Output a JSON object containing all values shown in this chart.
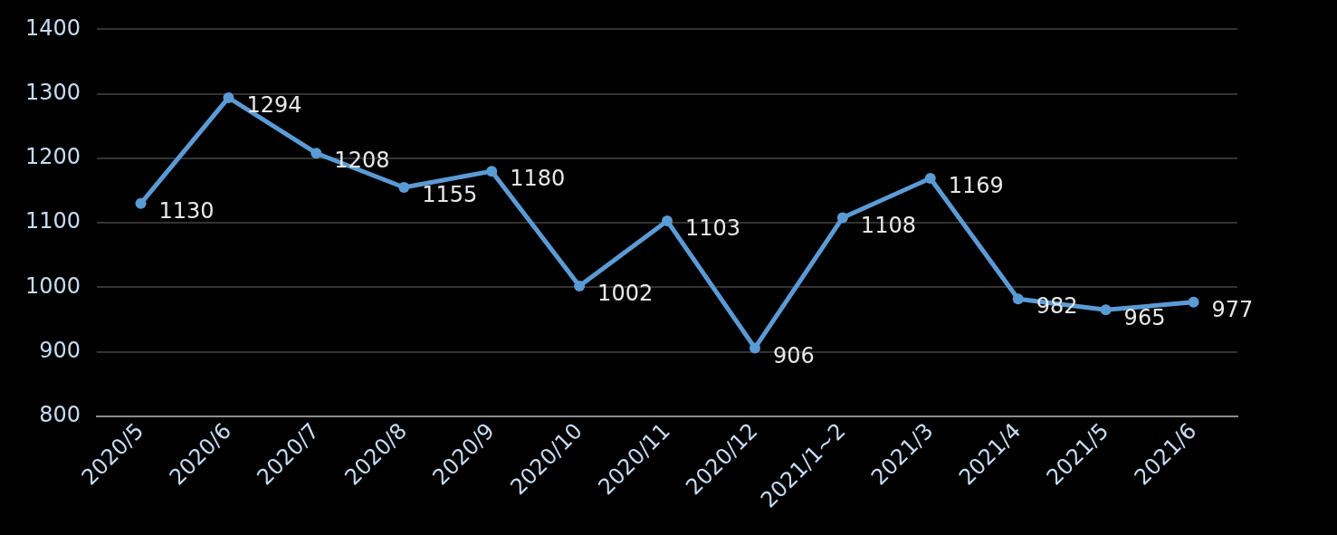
{
  "chart_data": {
    "type": "line",
    "categories": [
      "2020/5",
      "2020/6",
      "2020/7",
      "2020/8",
      "2020/9",
      "2020/10",
      "2020/11",
      "2020/12",
      "2021/1~2",
      "2021/3",
      "2021/4",
      "2021/5",
      "2021/6"
    ],
    "series": [
      {
        "color": "#5b9bd5",
        "values": [
          1130,
          1294,
          1208,
          1155,
          1180,
          1002,
          1103,
          906,
          1108,
          1169,
          982,
          965,
          977
        ]
      }
    ],
    "ylim": [
      800,
      1400
    ],
    "yticks": [
      800,
      900,
      1000,
      1100,
      1200,
      1300,
      1400
    ],
    "grid": "y",
    "legend": false,
    "marker": "circle",
    "line_style": "solid",
    "data_labels": true
  }
}
